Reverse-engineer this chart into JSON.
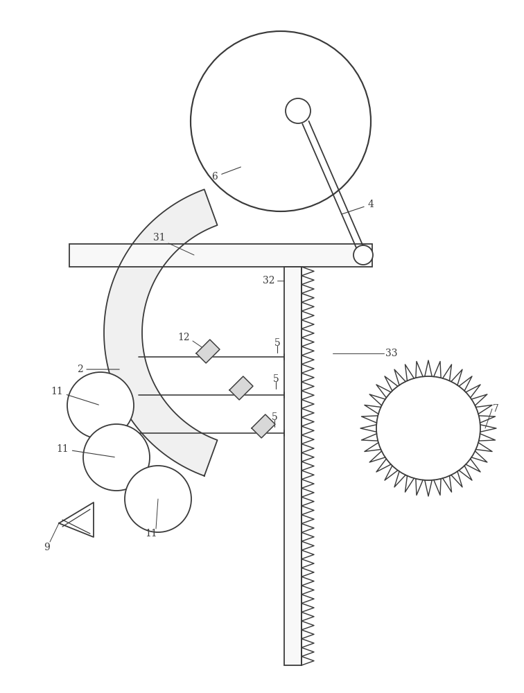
{
  "bg_color": "#ffffff",
  "line_color": "#3a3a3a",
  "line_width": 1.3,
  "label_color": "#3a3a3a",
  "label_fontsize": 10,
  "fig_width": 7.56,
  "fig_height": 10.0
}
